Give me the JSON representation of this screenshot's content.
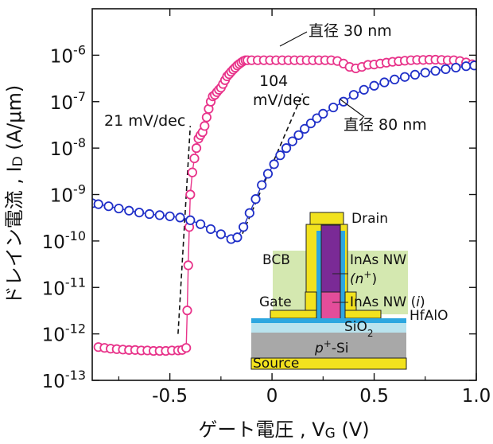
{
  "chart_data": {
    "type": "scatter",
    "xlabel": "ゲート電圧 , V",
    "xlabel_sub": "G",
    "xlabel_unit": " (V)",
    "ylabel": "ドレイン電流 , I",
    "ylabel_sub": "D",
    "ylabel_unit": " (A/μm)",
    "xlim": [
      -0.88,
      1.0
    ],
    "ylim": [
      1e-13,
      1e-05
    ],
    "yscale": "log",
    "x_ticks": [
      -0.5,
      0,
      0.5,
      1.0
    ],
    "x_tick_labels": [
      "-0.5",
      "0",
      "0.5",
      "1.0"
    ],
    "y_ticks": [
      {
        "exp": -13,
        "label": "10",
        "sup": "-13"
      },
      {
        "exp": -12,
        "label": "10",
        "sup": "-12"
      },
      {
        "exp": -11,
        "label": "10",
        "sup": "-11"
      },
      {
        "exp": -10,
        "label": "10",
        "sup": "-10"
      },
      {
        "exp": -9,
        "label": "10",
        "sup": "-9"
      },
      {
        "exp": -8,
        "label": "10",
        "sup": "-8"
      },
      {
        "exp": -7,
        "label": "10",
        "sup": "-7"
      },
      {
        "exp": -6,
        "label": "10",
        "sup": "-6"
      }
    ],
    "grid": false,
    "series": [
      {
        "name": "直径 30 nm",
        "color": "#e8338a",
        "marker": "open-circle",
        "x": [
          -0.85,
          -0.82,
          -0.79,
          -0.76,
          -0.73,
          -0.7,
          -0.67,
          -0.64,
          -0.61,
          -0.58,
          -0.55,
          -0.52,
          -0.49,
          -0.46,
          -0.44,
          -0.42,
          -0.415,
          -0.41,
          -0.405,
          -0.4,
          -0.39,
          -0.38,
          -0.37,
          -0.36,
          -0.35,
          -0.34,
          -0.33,
          -0.32,
          -0.31,
          -0.3,
          -0.29,
          -0.28,
          -0.27,
          -0.26,
          -0.25,
          -0.24,
          -0.23,
          -0.22,
          -0.21,
          -0.2,
          -0.19,
          -0.18,
          -0.17,
          -0.16,
          -0.15,
          -0.14,
          -0.13,
          -0.12,
          -0.1,
          -0.07,
          -0.04,
          -0.01,
          0.02,
          0.05,
          0.08,
          0.11,
          0.14,
          0.17,
          0.2,
          0.23,
          0.26,
          0.29,
          0.32,
          0.35,
          0.38,
          0.41,
          0.44,
          0.47,
          0.5,
          0.53,
          0.56,
          0.59,
          0.62,
          0.65,
          0.68,
          0.71,
          0.74,
          0.77,
          0.8,
          0.83,
          0.86,
          0.89,
          0.92,
          0.95,
          0.98
        ],
        "y": [
          5.2e-13,
          5e-13,
          4.8e-13,
          4.7e-13,
          4.6e-13,
          4.5e-13,
          4.5e-13,
          4.4e-13,
          4.4e-13,
          4.3e-13,
          4.3e-13,
          4.3e-13,
          4.4e-13,
          4.4e-13,
          4.5e-13,
          5e-13,
          3.2e-12,
          3e-11,
          2e-10,
          1e-09,
          3e-09,
          6e-09,
          1e-08,
          1.6e-08,
          1.9e-08,
          2.2e-08,
          3e-08,
          4.6e-08,
          7e-08,
          1e-07,
          1.3e-07,
          1.4e-07,
          1.6e-07,
          1.8e-07,
          2e-07,
          2.4e-07,
          2.9e-07,
          3.5e-07,
          3.9e-07,
          4.4e-07,
          4.9e-07,
          5.4e-07,
          6e-07,
          6.5e-07,
          7e-07,
          7.5e-07,
          7.8e-07,
          7.8e-07,
          7.8e-07,
          7.8e-07,
          7.8e-07,
          7.8e-07,
          7.8e-07,
          7.8e-07,
          7.8e-07,
          7.8e-07,
          7.8e-07,
          7.8e-07,
          7.8e-07,
          7.8e-07,
          7.8e-07,
          7.8e-07,
          7.5e-07,
          6.6e-07,
          5.6e-07,
          5.2e-07,
          5.6e-07,
          6.2e-07,
          6.3e-07,
          6.6e-07,
          6.9e-07,
          7.2e-07,
          7.4e-07,
          7.6e-07,
          7.8e-07,
          7.9e-07,
          7.9e-07,
          8e-07,
          8e-07,
          7.9e-07,
          7.8e-07,
          7.8e-07,
          7.5e-07,
          7e-07,
          6.4e-07
        ]
      },
      {
        "name": "直径 80 nm",
        "color": "#1f2fc8",
        "marker": "open-circle",
        "x": [
          -0.88,
          -0.85,
          -0.8,
          -0.75,
          -0.7,
          -0.65,
          -0.6,
          -0.55,
          -0.5,
          -0.45,
          -0.4,
          -0.35,
          -0.3,
          -0.25,
          -0.2,
          -0.17,
          -0.14,
          -0.11,
          -0.08,
          -0.05,
          -0.02,
          0.01,
          0.04,
          0.07,
          0.1,
          0.13,
          0.16,
          0.19,
          0.22,
          0.25,
          0.3,
          0.35,
          0.4,
          0.45,
          0.5,
          0.55,
          0.6,
          0.65,
          0.7,
          0.75,
          0.8,
          0.85,
          0.9,
          0.95,
          0.99
        ],
        "y": [
          6.5e-10,
          6.2e-10,
          5.6e-10,
          5e-10,
          4.5e-10,
          4.1e-10,
          3.8e-10,
          3.6e-10,
          3.4e-10,
          3.2e-10,
          2.8e-10,
          2.3e-10,
          1.8e-10,
          1.4e-10,
          1.1e-10,
          1.2e-10,
          2e-10,
          4e-10,
          8e-10,
          1.6e-09,
          2.8e-09,
          4.5e-09,
          7e-09,
          1e-08,
          1.4e-08,
          1.9e-08,
          2.6e-08,
          3.4e-08,
          4.4e-08,
          5.5e-08,
          7.5e-08,
          1e-07,
          1.4e-07,
          1.8e-07,
          2.2e-07,
          2.6e-07,
          3e-07,
          3.4e-07,
          3.8e-07,
          4.2e-07,
          4.6e-07,
          5e-07,
          5.4e-07,
          5.8e-07,
          6e-07
        ]
      }
    ],
    "fit_lines": [
      {
        "x": [
          -0.46,
          -0.4
        ],
        "y": [
          1e-12,
          3e-08
        ]
      },
      {
        "x": [
          -0.16,
          0.15
        ],
        "y": [
          1e-10,
          1.5e-07
        ]
      }
    ],
    "annotations": {
      "d30": "直径 30 nm",
      "d80": "直径 80 nm",
      "ss21": "21 mV/dec",
      "ss104_line1": "104",
      "ss104_line2": "mV/dec"
    },
    "inset": {
      "labels": {
        "drain": "Drain",
        "bcb": "BCB",
        "inas_n1": "InAs NW",
        "inas_n2": "(n",
        "inas_n2_sup": "+",
        "inas_n2_end": ")",
        "gate": "Gate",
        "inas_i1": "InAs NW (",
        "inas_i_italic": "i",
        "inas_i_end": ")",
        "hfalo": "HfAlO",
        "sio2": "SiO",
        "sio2_sub": "2",
        "psi_p": "p",
        "psi_sup": "+",
        "psi_end": "-Si",
        "source": "Source"
      },
      "colors": {
        "bcb": "#d4e8b0",
        "metal": "#f2e21e",
        "n_plus": "#7a2a96",
        "intrinsic": "#e34d9a",
        "hfalo": "#2da7e0",
        "sio2": "#b9e3ee",
        "si": "#a8a8a8"
      }
    }
  }
}
